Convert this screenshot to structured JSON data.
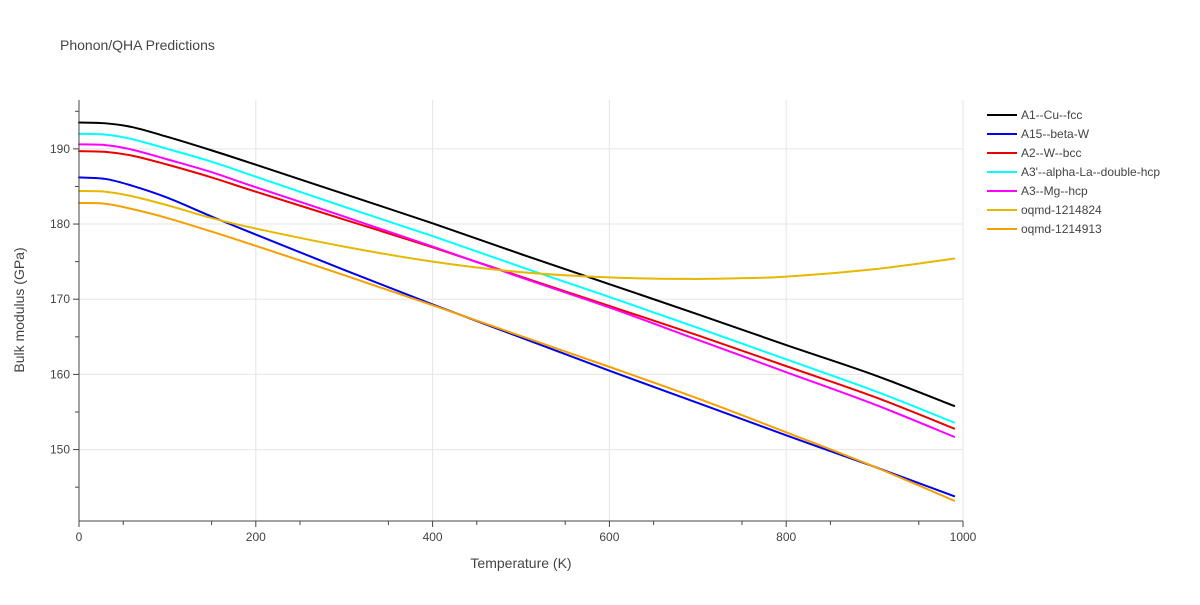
{
  "chart_data": {
    "type": "line",
    "title": "Phonon/QHA Predictions",
    "xlabel": "Temperature (K)",
    "ylabel": "Bulk modulus (GPa)",
    "xlim": [
      0,
      1000
    ],
    "ylim": [
      140.5,
      196.5
    ],
    "x_ticks": [
      0,
      200,
      400,
      600,
      800,
      1000
    ],
    "y_ticks": [
      150,
      160,
      170,
      180,
      190
    ],
    "grid": true,
    "legend_position": "right",
    "series": [
      {
        "name": "A1--Cu--fcc",
        "color": "#000000",
        "points": [
          [
            0,
            193.5
          ],
          [
            30,
            193.4
          ],
          [
            60,
            192.9
          ],
          [
            100,
            191.6
          ],
          [
            150,
            189.8
          ],
          [
            200,
            187.9
          ],
          [
            300,
            184.0
          ],
          [
            400,
            180.1
          ],
          [
            500,
            176.0
          ],
          [
            600,
            172.0
          ],
          [
            700,
            168.0
          ],
          [
            800,
            163.9
          ],
          [
            900,
            159.9
          ],
          [
            990,
            155.8
          ]
        ]
      },
      {
        "name": "A15--beta-W",
        "color": "#0000ee",
        "points": [
          [
            0,
            186.2
          ],
          [
            30,
            186.0
          ],
          [
            60,
            185.1
          ],
          [
            100,
            183.5
          ],
          [
            150,
            181.0
          ],
          [
            200,
            178.6
          ],
          [
            300,
            173.9
          ],
          [
            400,
            169.3
          ],
          [
            500,
            164.9
          ],
          [
            600,
            160.5
          ],
          [
            700,
            156.2
          ],
          [
            800,
            151.9
          ],
          [
            900,
            147.7
          ],
          [
            990,
            143.8
          ]
        ]
      },
      {
        "name": "A2--W--bcc",
        "color": "#ee0000",
        "points": [
          [
            0,
            189.7
          ],
          [
            30,
            189.6
          ],
          [
            60,
            189.1
          ],
          [
            100,
            187.9
          ],
          [
            150,
            186.2
          ],
          [
            200,
            184.3
          ],
          [
            300,
            180.6
          ],
          [
            400,
            176.9
          ],
          [
            500,
            173.0
          ],
          [
            600,
            169.1
          ],
          [
            700,
            165.2
          ],
          [
            800,
            161.1
          ],
          [
            900,
            157.0
          ],
          [
            990,
            152.8
          ]
        ]
      },
      {
        "name": "A3'--alpha-La--double-hcp",
        "color": "#00ffff",
        "points": [
          [
            0,
            192.0
          ],
          [
            30,
            191.9
          ],
          [
            60,
            191.3
          ],
          [
            100,
            190.0
          ],
          [
            150,
            188.3
          ],
          [
            200,
            186.3
          ],
          [
            300,
            182.3
          ],
          [
            400,
            178.4
          ],
          [
            500,
            174.3
          ],
          [
            600,
            170.3
          ],
          [
            700,
            166.2
          ],
          [
            800,
            162.0
          ],
          [
            900,
            157.8
          ],
          [
            990,
            153.6
          ]
        ]
      },
      {
        "name": "A3--Mg--hcp",
        "color": "#ff00ff",
        "points": [
          [
            0,
            190.6
          ],
          [
            30,
            190.5
          ],
          [
            60,
            189.9
          ],
          [
            100,
            188.6
          ],
          [
            150,
            186.9
          ],
          [
            200,
            184.9
          ],
          [
            300,
            181.0
          ],
          [
            400,
            177.0
          ],
          [
            500,
            172.9
          ],
          [
            600,
            168.9
          ],
          [
            700,
            164.6
          ],
          [
            800,
            160.3
          ],
          [
            900,
            156.0
          ],
          [
            990,
            151.7
          ]
        ]
      },
      {
        "name": "oqmd-1214824",
        "color": "#e6b800",
        "points": [
          [
            0,
            184.4
          ],
          [
            30,
            184.3
          ],
          [
            60,
            183.7
          ],
          [
            100,
            182.5
          ],
          [
            150,
            180.8
          ],
          [
            200,
            179.4
          ],
          [
            300,
            177.0
          ],
          [
            400,
            175.0
          ],
          [
            500,
            173.6
          ],
          [
            600,
            172.9
          ],
          [
            690,
            172.7
          ],
          [
            750,
            172.8
          ],
          [
            800,
            173.0
          ],
          [
            900,
            174.0
          ],
          [
            990,
            175.4
          ]
        ]
      },
      {
        "name": "oqmd-1214913",
        "color": "#f5a000",
        "points": [
          [
            0,
            182.8
          ],
          [
            30,
            182.7
          ],
          [
            60,
            182.0
          ],
          [
            100,
            180.8
          ],
          [
            150,
            179.0
          ],
          [
            200,
            177.1
          ],
          [
            300,
            173.2
          ],
          [
            400,
            169.2
          ],
          [
            500,
            165.1
          ],
          [
            600,
            161.0
          ],
          [
            700,
            156.8
          ],
          [
            800,
            152.3
          ],
          [
            900,
            147.7
          ],
          [
            990,
            143.2
          ]
        ]
      }
    ]
  }
}
